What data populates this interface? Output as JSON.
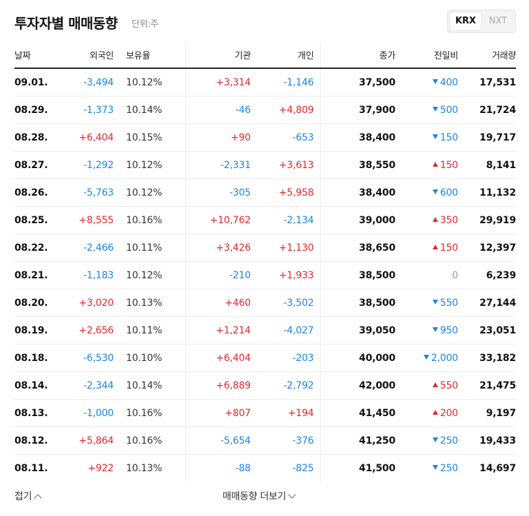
{
  "header": {
    "title": "투자자별 매매동향",
    "unit": "단위:주",
    "exchanges": [
      "KRX",
      "NXT"
    ],
    "active_exchange": "KRX"
  },
  "columns": {
    "date": "날짜",
    "foreign": "외국인",
    "holding": "보유율",
    "institution": "기관",
    "individual": "개인",
    "close": "종가",
    "change": "전일비",
    "volume": "거래량"
  },
  "rows": [
    {
      "date": "09.01.",
      "foreign": "-3,494",
      "holding": "10.12%",
      "institution": "+3,314",
      "individual": "-1,146",
      "close": "37,500",
      "change": "400",
      "dir": "down",
      "volume": "17,531"
    },
    {
      "date": "08.29.",
      "foreign": "-1,373",
      "holding": "10.14%",
      "institution": "-46",
      "individual": "+4,809",
      "close": "37,900",
      "change": "500",
      "dir": "down",
      "volume": "21,724"
    },
    {
      "date": "08.28.",
      "foreign": "+6,404",
      "holding": "10.15%",
      "institution": "+90",
      "individual": "-653",
      "close": "38,400",
      "change": "150",
      "dir": "down",
      "volume": "19,717"
    },
    {
      "date": "08.27.",
      "foreign": "-1,292",
      "holding": "10.12%",
      "institution": "-2,331",
      "individual": "+3,613",
      "close": "38,550",
      "change": "150",
      "dir": "up",
      "volume": "8,141"
    },
    {
      "date": "08.26.",
      "foreign": "-5,763",
      "holding": "10.12%",
      "institution": "-305",
      "individual": "+5,958",
      "close": "38,400",
      "change": "600",
      "dir": "down",
      "volume": "11,132"
    },
    {
      "date": "08.25.",
      "foreign": "+8,555",
      "holding": "10.16%",
      "institution": "+10,762",
      "individual": "-2,134",
      "close": "39,000",
      "change": "350",
      "dir": "up",
      "volume": "29,919"
    },
    {
      "date": "08.22.",
      "foreign": "-2,466",
      "holding": "10.11%",
      "institution": "+3,426",
      "individual": "+1,130",
      "close": "38,650",
      "change": "150",
      "dir": "up",
      "volume": "12,397"
    },
    {
      "date": "08.21.",
      "foreign": "-1,183",
      "holding": "10.12%",
      "institution": "-210",
      "individual": "+1,933",
      "close": "38,500",
      "change": "0",
      "dir": "flat",
      "volume": "6,239"
    },
    {
      "date": "08.20.",
      "foreign": "+3,020",
      "holding": "10.13%",
      "institution": "+460",
      "individual": "-3,502",
      "close": "38,500",
      "change": "550",
      "dir": "down",
      "volume": "27,144"
    },
    {
      "date": "08.19.",
      "foreign": "+2,656",
      "holding": "10.11%",
      "institution": "+1,214",
      "individual": "-4,027",
      "close": "39,050",
      "change": "950",
      "dir": "down",
      "volume": "23,051"
    },
    {
      "date": "08.18.",
      "foreign": "-6,530",
      "holding": "10.10%",
      "institution": "+6,404",
      "individual": "-203",
      "close": "40,000",
      "change": "2,000",
      "dir": "down",
      "volume": "33,182"
    },
    {
      "date": "08.14.",
      "foreign": "-2,344",
      "holding": "10.14%",
      "institution": "+6,889",
      "individual": "-2,792",
      "close": "42,000",
      "change": "550",
      "dir": "up",
      "volume": "21,475"
    },
    {
      "date": "08.13.",
      "foreign": "-1,000",
      "holding": "10.16%",
      "institution": "+807",
      "individual": "+194",
      "close": "41,450",
      "change": "200",
      "dir": "up",
      "volume": "9,197"
    },
    {
      "date": "08.12.",
      "foreign": "+5,864",
      "holding": "10.16%",
      "institution": "-5,654",
      "individual": "-376",
      "close": "41,250",
      "change": "250",
      "dir": "down",
      "volume": "19,433"
    },
    {
      "date": "08.11.",
      "foreign": "+922",
      "holding": "10.13%",
      "institution": "-88",
      "individual": "-825",
      "close": "41,500",
      "change": "250",
      "dir": "down",
      "volume": "14,697"
    }
  ],
  "footer": {
    "fold_label": "접기",
    "more_label": "매매동향 더보기"
  },
  "colors": {
    "up": "#e5262e",
    "down": "#1a84e8",
    "flat": "#999999"
  }
}
